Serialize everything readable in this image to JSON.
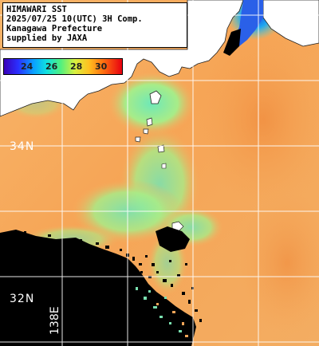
{
  "title_lines": [
    "HIMAWARI SST",
    "2025/07/25 10(UTC) 3H Comp.",
    "Kanagawa Prefecture",
    "supplied by JAXA"
  ],
  "colorbar": {
    "ticks": [
      "24",
      "26",
      "28",
      "30"
    ],
    "min_c": 22,
    "max_c": 32
  },
  "grid": {
    "lat_labels": [
      "34N",
      "32N"
    ],
    "lon_labels": [
      "138E"
    ]
  },
  "colors": {
    "land": "#ffffff",
    "no_data": "#000000",
    "sea_warm": "#f5a95a",
    "sea_cool": "#8ce8a0",
    "grid_line": "#ffffff"
  }
}
